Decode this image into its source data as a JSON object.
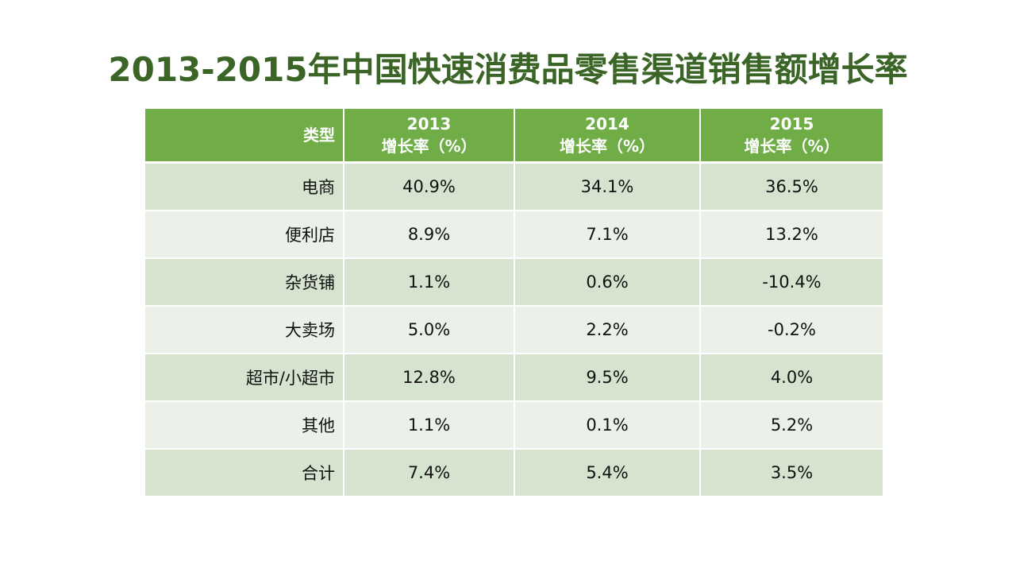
{
  "title": "2013-2015年中国快速消费品零售渠道销售额增长率",
  "table": {
    "header": {
      "type_label": "类型",
      "columns": [
        {
          "year": "2013",
          "sub": "增长率（%）"
        },
        {
          "year": "2014",
          "sub": "增长率（%）"
        },
        {
          "year": "2015",
          "sub": "增长率（%）"
        }
      ]
    },
    "rows": [
      {
        "type": "电商",
        "values": [
          "40.9%",
          "34.1%",
          "36.5%"
        ]
      },
      {
        "type": "便利店",
        "values": [
          "8.9%",
          "7.1%",
          "13.2%"
        ]
      },
      {
        "type": "杂货铺",
        "values": [
          "1.1%",
          "0.6%",
          "-10.4%"
        ]
      },
      {
        "type": "大卖场",
        "values": [
          "5.0%",
          "2.2%",
          "-0.2%"
        ]
      },
      {
        "type": "超市/小超市",
        "values": [
          "12.8%",
          "9.5%",
          "4.0%"
        ]
      },
      {
        "type": "其他",
        "values": [
          "1.1%",
          "0.1%",
          "5.2%"
        ]
      },
      {
        "type": "合计",
        "values": [
          "7.4%",
          "5.4%",
          "3.5%"
        ]
      }
    ]
  },
  "colors": {
    "title": "#3b6427",
    "header_bg": "#70ad47",
    "row_odd_bg": "#d5e3cf",
    "row_even_bg": "#ebf1e9"
  }
}
